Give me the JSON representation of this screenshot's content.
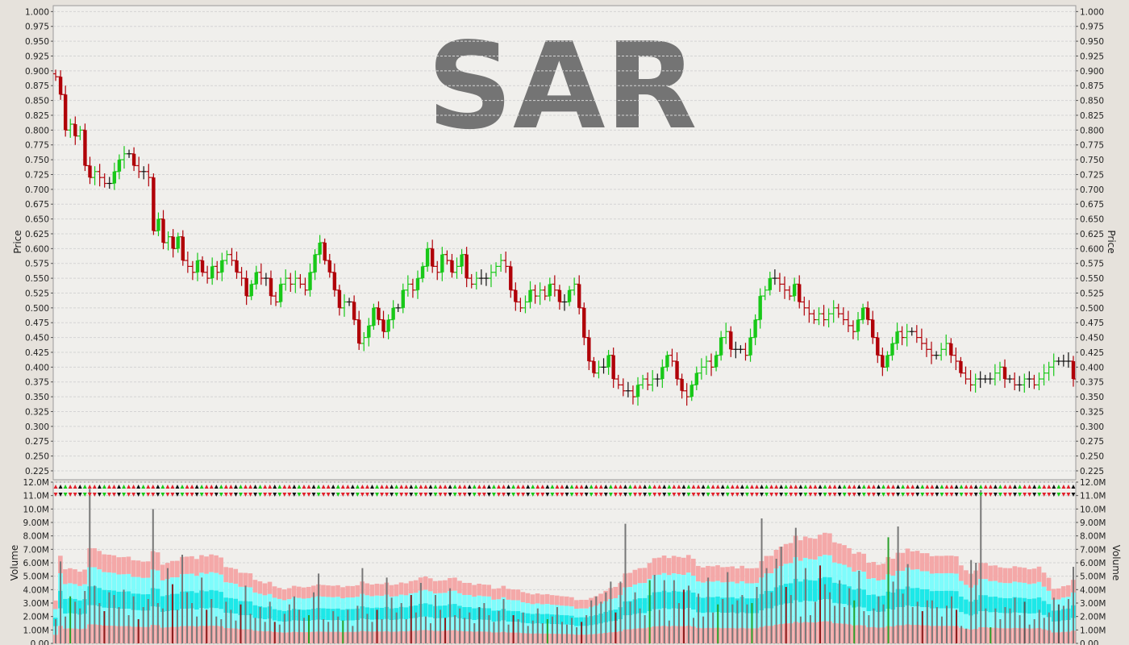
{
  "chart_data": [
    {
      "type": "ohlc",
      "watermark": "SAR",
      "ylabel": "Price",
      "ylim": [
        0.21,
        1.01
      ],
      "yticks": [
        "1.000",
        "0.975",
        "0.950",
        "0.925",
        "0.900",
        "0.875",
        "0.850",
        "0.825",
        "0.800",
        "0.775",
        "0.750",
        "0.725",
        "0.700",
        "0.675",
        "0.650",
        "0.625",
        "0.600",
        "0.575",
        "0.550",
        "0.525",
        "0.500",
        "0.475",
        "0.450",
        "0.425",
        "0.400",
        "0.375",
        "0.350",
        "0.325",
        "0.300",
        "0.275",
        "0.250",
        "0.225"
      ],
      "colors": {
        "up": "#18c818",
        "down": "#b00008",
        "flat": "#111111"
      },
      "close": [
        0.89,
        0.86,
        0.8,
        0.81,
        0.79,
        0.8,
        0.74,
        0.72,
        0.73,
        0.72,
        0.71,
        0.71,
        0.73,
        0.75,
        0.76,
        0.76,
        0.74,
        0.73,
        0.73,
        0.72,
        0.63,
        0.65,
        0.61,
        0.62,
        0.6,
        0.62,
        0.58,
        0.57,
        0.56,
        0.58,
        0.56,
        0.55,
        0.57,
        0.56,
        0.58,
        0.59,
        0.58,
        0.56,
        0.55,
        0.52,
        0.54,
        0.56,
        0.55,
        0.55,
        0.52,
        0.51,
        0.54,
        0.55,
        0.54,
        0.55,
        0.54,
        0.53,
        0.56,
        0.59,
        0.61,
        0.58,
        0.56,
        0.53,
        0.5,
        0.51,
        0.51,
        0.48,
        0.44,
        0.45,
        0.47,
        0.5,
        0.48,
        0.46,
        0.48,
        0.5,
        0.5,
        0.53,
        0.54,
        0.53,
        0.55,
        0.57,
        0.6,
        0.57,
        0.56,
        0.59,
        0.58,
        0.56,
        0.57,
        0.59,
        0.55,
        0.54,
        0.55,
        0.55,
        0.55,
        0.56,
        0.57,
        0.58,
        0.57,
        0.53,
        0.51,
        0.5,
        0.51,
        0.53,
        0.52,
        0.53,
        0.52,
        0.54,
        0.53,
        0.51,
        0.51,
        0.53,
        0.54,
        0.5,
        0.45,
        0.41,
        0.39,
        0.4,
        0.4,
        0.42,
        0.38,
        0.37,
        0.36,
        0.36,
        0.35,
        0.37,
        0.38,
        0.37,
        0.38,
        0.38,
        0.4,
        0.42,
        0.41,
        0.38,
        0.36,
        0.35,
        0.37,
        0.39,
        0.4,
        0.41,
        0.4,
        0.42,
        0.45,
        0.46,
        0.43,
        0.43,
        0.43,
        0.42,
        0.45,
        0.48,
        0.52,
        0.53,
        0.55,
        0.55,
        0.54,
        0.53,
        0.52,
        0.54,
        0.51,
        0.5,
        0.49,
        0.48,
        0.49,
        0.48,
        0.49,
        0.5,
        0.49,
        0.48,
        0.47,
        0.46,
        0.48,
        0.5,
        0.48,
        0.45,
        0.42,
        0.4,
        0.42,
        0.44,
        0.46,
        0.45,
        0.46,
        0.46,
        0.45,
        0.44,
        0.43,
        0.42,
        0.42,
        0.43,
        0.44,
        0.42,
        0.41,
        0.39,
        0.38,
        0.37,
        0.38,
        0.38,
        0.38,
        0.38,
        0.39,
        0.4,
        0.38,
        0.38,
        0.37,
        0.37,
        0.38,
        0.38,
        0.37,
        0.38,
        0.39,
        0.4,
        0.41,
        0.41,
        0.41,
        0.41,
        0.38
      ]
    },
    {
      "type": "bar",
      "ylabel": "Volume",
      "ylim": [
        0,
        12000000
      ],
      "yticks": [
        "12.0M",
        "11.0M",
        "10.0M",
        "9.00M",
        "8.00M",
        "7.00M",
        "6.00M",
        "5.00M",
        "4.00M",
        "3.00M",
        "2.00M",
        "1.00M",
        "0.00"
      ],
      "volume_million": [
        1.8,
        6.1,
        2.0,
        3.5,
        3.1,
        2.6,
        3.9,
        11.5,
        4.3,
        3.0,
        2.4,
        3.8,
        3.6,
        2.7,
        4.0,
        2.1,
        3.5,
        1.8,
        2.7,
        3.3,
        10.0,
        3.0,
        2.6,
        5.6,
        4.4,
        2.5,
        6.6,
        3.8,
        3.0,
        2.0,
        4.9,
        2.5,
        3.3,
        2.0,
        1.8,
        3.1,
        2.5,
        1.7,
        2.9,
        4.3,
        2.2,
        1.9,
        2.7,
        1.6,
        3.1,
        1.6,
        1.4,
        2.2,
        2.9,
        3.5,
        2.5,
        1.9,
        2.1,
        3.8,
        5.2,
        1.8,
        1.6,
        2.4,
        2.0,
        1.7,
        2.5,
        1.3,
        2.8,
        5.6,
        2.2,
        1.6,
        2.5,
        1.8,
        4.9,
        3.4,
        2.3,
        3.0,
        1.8,
        3.6,
        2.3,
        4.5,
        2.0,
        1.5,
        3.6,
        2.5,
        1.9,
        4.1,
        2.1,
        2.6,
        1.9,
        2.3,
        1.5,
        2.7,
        3.0,
        2.1,
        1.6,
        2.4,
        3.3,
        1.4,
        2.1,
        1.8,
        2.3,
        1.3,
        1.7,
        2.6,
        1.5,
        1.8,
        2.0,
        2.7,
        1.6,
        1.4,
        1.9,
        1.2,
        1.6,
        2.1,
        3.2,
        3.5,
        3.1,
        3.8,
        4.6,
        2.3,
        4.6,
        8.9,
        3.1,
        3.8,
        2.6,
        2.1,
        4.7,
        5.1,
        2.5,
        4.7,
        1.7,
        4.7,
        3.0,
        4.0,
        4.3,
        1.9,
        3.7,
        2.0,
        4.9,
        2.3,
        2.9,
        3.3,
        5.3,
        2.9,
        3.2,
        3.6,
        2.9,
        3.0,
        4.2,
        9.3,
        5.6,
        3.8,
        6.3,
        7.2,
        4.2,
        3.6,
        8.6,
        2.0,
        5.6,
        2.1,
        3.1,
        5.8,
        4.4,
        3.8,
        2.8,
        4.7,
        2.7,
        4.1,
        3.2,
        5.4,
        2.4,
        2.1,
        2.6,
        3.5,
        2.9,
        7.9,
        4.6,
        8.7,
        3.7,
        5.9,
        2.7,
        3.1,
        2.4,
        3.2,
        3.2,
        2.7,
        2.0,
        2.8,
        3.5,
        2.5,
        1.3,
        1.1,
        6.2,
        6.0,
        11.4,
        2.6,
        1.2,
        2.6,
        1.8,
        2.7,
        2.6,
        3.4,
        2.1,
        3.1,
        1.4,
        1.8,
        2.5,
        1.9,
        2.3,
        3.4,
        2.9,
        2.8,
        3.3,
        5.7
      ],
      "series": [
        {
          "name": "",
          "color": "#f4a8a8"
        },
        {
          "name": "",
          "color": "#7efcfc"
        },
        {
          "name": "",
          "color": "#1ce8e8"
        },
        {
          "name": "",
          "color": "#7efcfc"
        },
        {
          "name": "",
          "color": "#f4a8a8"
        }
      ]
    }
  ]
}
